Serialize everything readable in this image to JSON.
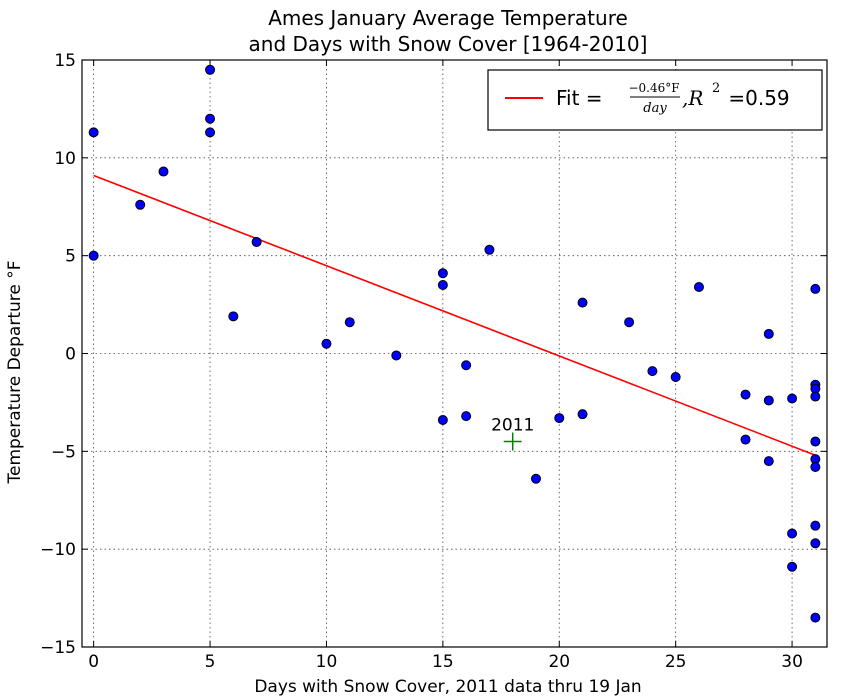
{
  "chart_data": {
    "type": "scatter",
    "title_line1": "Ames January Average Temperature",
    "title_line2": "and Days with Snow Cover [1964-2010]",
    "xlabel": "Days with Snow Cover, 2011 data thru 19 Jan",
    "ylabel": "Temperature Departure °F",
    "xlim": [
      -0.5,
      31.5
    ],
    "ylim": [
      -15,
      15
    ],
    "xticks": [
      0,
      5,
      10,
      15,
      20,
      25,
      30
    ],
    "yticks": [
      -15,
      -10,
      -5,
      0,
      5,
      10,
      15
    ],
    "grid": true,
    "legend_position": "top-right",
    "marker_color": "#0000ff",
    "fit_color": "#ff0000",
    "annotation_color": "#008000",
    "points": [
      {
        "x": 0,
        "y": 11.3
      },
      {
        "x": 0,
        "y": 5.0
      },
      {
        "x": 2,
        "y": 7.6
      },
      {
        "x": 3,
        "y": 9.3
      },
      {
        "x": 5,
        "y": 14.5
      },
      {
        "x": 5,
        "y": 12.0
      },
      {
        "x": 5,
        "y": 11.3
      },
      {
        "x": 6,
        "y": 1.9
      },
      {
        "x": 7,
        "y": 5.7
      },
      {
        "x": 10,
        "y": 0.5
      },
      {
        "x": 11,
        "y": 1.6
      },
      {
        "x": 13,
        "y": -0.1
      },
      {
        "x": 15,
        "y": 4.1
      },
      {
        "x": 15,
        "y": 3.5
      },
      {
        "x": 15,
        "y": -3.4
      },
      {
        "x": 16,
        "y": -0.6
      },
      {
        "x": 16,
        "y": -3.2
      },
      {
        "x": 17,
        "y": 5.3
      },
      {
        "x": 19,
        "y": -6.4
      },
      {
        "x": 20,
        "y": -3.3
      },
      {
        "x": 21,
        "y": 2.6
      },
      {
        "x": 21,
        "y": -3.1
      },
      {
        "x": 23,
        "y": 1.6
      },
      {
        "x": 24,
        "y": -0.9
      },
      {
        "x": 25,
        "y": -1.2
      },
      {
        "x": 26,
        "y": 3.4
      },
      {
        "x": 28,
        "y": -2.1
      },
      {
        "x": 28,
        "y": -4.4
      },
      {
        "x": 29,
        "y": 1.0
      },
      {
        "x": 29,
        "y": -2.4
      },
      {
        "x": 29,
        "y": -5.5
      },
      {
        "x": 30,
        "y": -2.3
      },
      {
        "x": 30,
        "y": -9.2
      },
      {
        "x": 30,
        "y": -10.9
      },
      {
        "x": 31,
        "y": 3.3
      },
      {
        "x": 31,
        "y": -1.6
      },
      {
        "x": 31,
        "y": -1.8
      },
      {
        "x": 31,
        "y": -2.2
      },
      {
        "x": 31,
        "y": -4.5
      },
      {
        "x": 31,
        "y": -5.4
      },
      {
        "x": 31,
        "y": -5.8
      },
      {
        "x": 31,
        "y": -8.8
      },
      {
        "x": 31,
        "y": -9.7
      },
      {
        "x": 31,
        "y": -13.5
      }
    ],
    "fit_line": {
      "x": [
        0,
        31
      ],
      "y": [
        9.1,
        -5.2
      ]
    },
    "legend": {
      "fit_prefix": "Fit = ",
      "numerator": "−0.46°F",
      "denominator": "day",
      "r2_label": ",R",
      "r2_exponent": "2",
      "r2_value": " =0.59"
    },
    "annotation": {
      "label": "2011",
      "x": 18,
      "y": -4.5
    }
  }
}
